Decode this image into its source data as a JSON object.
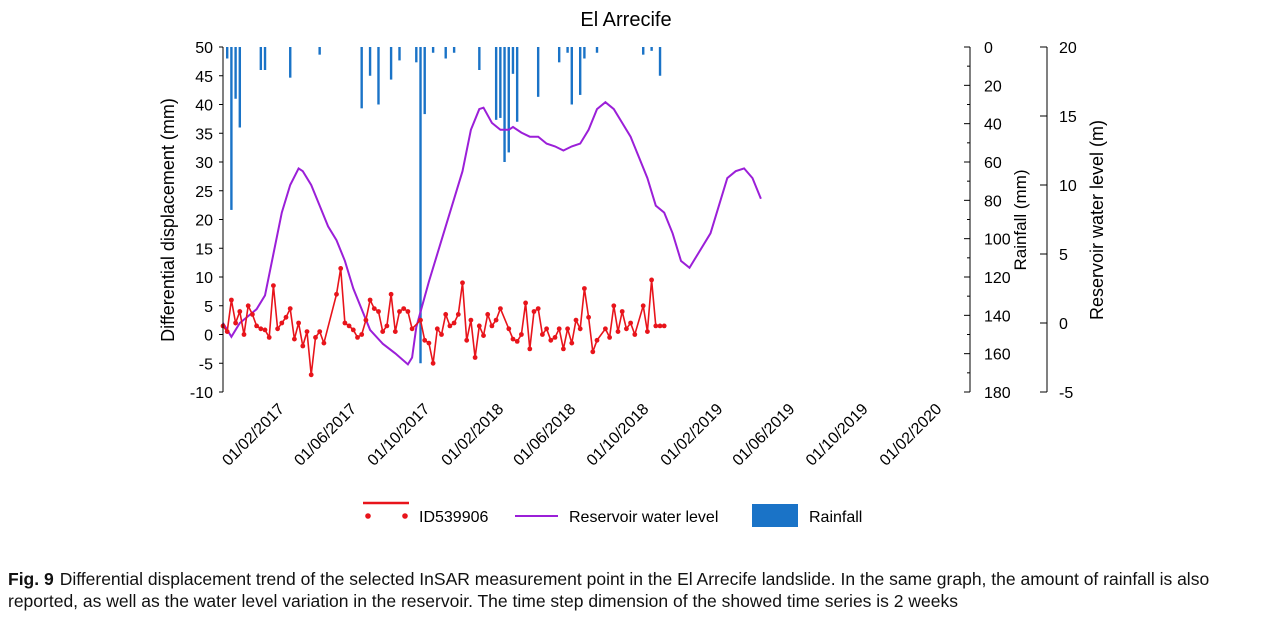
{
  "chart_data": {
    "type": "line",
    "title": "El Arrecife",
    "y_left": {
      "label": "Differential displacement (mm)",
      "range": [
        -10,
        50
      ],
      "ticks": [
        "50",
        "45",
        "40",
        "35",
        "30",
        "25",
        "20",
        "15",
        "10",
        "5",
        "0",
        "-5",
        "-10"
      ]
    },
    "y_rain": {
      "label": "Rainfall (mm)",
      "range": [
        0,
        180
      ],
      "inverted": true,
      "ticks": [
        "0",
        "20",
        "40",
        "60",
        "80",
        "100",
        "120",
        "140",
        "160",
        "180"
      ]
    },
    "y_level": {
      "label": "Reservoir water level (m)",
      "range": [
        -5,
        20
      ],
      "ticks": [
        "20",
        "15",
        "10",
        "5",
        "0",
        "-5"
      ]
    },
    "x_range": [
      "2016-10-27",
      "2020-03-01"
    ],
    "x_ticks": [
      "01/02/2017",
      "01/06/2017",
      "01/10/2017",
      "01/02/2018",
      "01/06/2018",
      "01/10/2018",
      "01/02/2019",
      "01/06/2019",
      "01/10/2019",
      "01/02/2020"
    ],
    "legend": [
      "ID539906",
      "Reservoir water level",
      "Rainfall"
    ],
    "legend_position": "bottom",
    "colors": {
      "displacement": "#e8141b",
      "water_level": "#9b1fd8",
      "rainfall": "#1a73c7"
    },
    "series": [
      {
        "name": "ID539906",
        "axis": "displacement",
        "style": "line-markers",
        "points": [
          [
            "2016-10-27",
            1.5
          ],
          [
            "2016-11-03",
            0.5
          ],
          [
            "2016-11-10",
            6
          ],
          [
            "2016-11-17",
            2
          ],
          [
            "2016-11-24",
            4
          ],
          [
            "2016-12-01",
            0
          ],
          [
            "2016-12-08",
            5
          ],
          [
            "2016-12-15",
            3.5
          ],
          [
            "2016-12-22",
            1.5
          ],
          [
            "2016-12-29",
            1
          ],
          [
            "2017-01-05",
            0.8
          ],
          [
            "2017-01-12",
            -0.5
          ],
          [
            "2017-01-19",
            8.5
          ],
          [
            "2017-01-26",
            1
          ],
          [
            "2017-02-02",
            2
          ],
          [
            "2017-02-09",
            3
          ],
          [
            "2017-02-16",
            4.5
          ],
          [
            "2017-02-23",
            -0.8
          ],
          [
            "2017-03-02",
            2
          ],
          [
            "2017-03-09",
            -2
          ],
          [
            "2017-03-16",
            0.5
          ],
          [
            "2017-03-23",
            -7
          ],
          [
            "2017-03-30",
            -0.5
          ],
          [
            "2017-04-06",
            0.5
          ],
          [
            "2017-04-13",
            -1.5
          ],
          [
            "2017-05-04",
            7
          ],
          [
            "2017-05-11",
            11.5
          ],
          [
            "2017-05-18",
            2
          ],
          [
            "2017-05-25",
            1.5
          ],
          [
            "2017-06-01",
            0.8
          ],
          [
            "2017-06-08",
            -0.5
          ],
          [
            "2017-06-15",
            0
          ],
          [
            "2017-06-22",
            2.5
          ],
          [
            "2017-06-29",
            6
          ],
          [
            "2017-07-06",
            4.5
          ],
          [
            "2017-07-13",
            4
          ],
          [
            "2017-07-20",
            0.5
          ],
          [
            "2017-07-27",
            1.5
          ],
          [
            "2017-08-03",
            7
          ],
          [
            "2017-08-10",
            0.5
          ],
          [
            "2017-08-17",
            4
          ],
          [
            "2017-08-24",
            4.5
          ],
          [
            "2017-08-31",
            4
          ],
          [
            "2017-09-07",
            1
          ],
          [
            "2017-09-21",
            2.5
          ],
          [
            "2017-09-28",
            -1
          ],
          [
            "2017-10-05",
            -1.5
          ],
          [
            "2017-10-12",
            -5
          ],
          [
            "2017-10-19",
            1
          ],
          [
            "2017-10-26",
            0
          ],
          [
            "2017-11-02",
            3.5
          ],
          [
            "2017-11-09",
            1.5
          ],
          [
            "2017-11-16",
            2
          ],
          [
            "2017-11-23",
            3.5
          ],
          [
            "2017-11-30",
            9
          ],
          [
            "2017-12-07",
            -1
          ],
          [
            "2017-12-14",
            2.5
          ],
          [
            "2017-12-21",
            -4
          ],
          [
            "2017-12-28",
            1.5
          ],
          [
            "2018-01-04",
            -0.2
          ],
          [
            "2018-01-11",
            3.5
          ],
          [
            "2018-01-18",
            1.5
          ],
          [
            "2018-01-25",
            2.5
          ],
          [
            "2018-02-01",
            4.5
          ],
          [
            "2018-02-15",
            1
          ],
          [
            "2018-02-22",
            -0.8
          ],
          [
            "2018-03-01",
            -1.2
          ],
          [
            "2018-03-08",
            0
          ],
          [
            "2018-03-15",
            5.5
          ],
          [
            "2018-03-22",
            -2.5
          ],
          [
            "2018-03-29",
            4
          ],
          [
            "2018-04-05",
            4.5
          ],
          [
            "2018-04-12",
            0
          ],
          [
            "2018-04-19",
            1
          ],
          [
            "2018-04-26",
            -1
          ],
          [
            "2018-05-03",
            -0.5
          ],
          [
            "2018-05-10",
            1
          ],
          [
            "2018-05-17",
            -2.5
          ],
          [
            "2018-05-24",
            1
          ],
          [
            "2018-05-31",
            -1.5
          ],
          [
            "2018-06-07",
            2.5
          ],
          [
            "2018-06-14",
            1
          ],
          [
            "2018-06-21",
            8
          ],
          [
            "2018-06-28",
            3
          ],
          [
            "2018-07-05",
            -3
          ],
          [
            "2018-07-12",
            -1
          ],
          [
            "2018-07-26",
            1
          ],
          [
            "2018-08-02",
            -0.5
          ],
          [
            "2018-08-09",
            5
          ],
          [
            "2018-08-16",
            0.5
          ],
          [
            "2018-08-23",
            4
          ],
          [
            "2018-08-30",
            1
          ],
          [
            "2018-09-06",
            2
          ],
          [
            "2018-09-13",
            0
          ],
          [
            "2018-09-27",
            5
          ],
          [
            "2018-10-04",
            0.5
          ],
          [
            "2018-10-11",
            9.5
          ],
          [
            "2018-10-18",
            1.5
          ],
          [
            "2018-10-25",
            1.5
          ],
          [
            "2018-11-01",
            1.5
          ]
        ]
      },
      {
        "name": "Reservoir water level",
        "axis": "level",
        "style": "line",
        "points": [
          [
            "2016-10-27",
            0
          ],
          [
            "2016-11-10",
            -1
          ],
          [
            "2016-11-24",
            0
          ],
          [
            "2016-12-08",
            0.5
          ],
          [
            "2016-12-22",
            1
          ],
          [
            "2017-01-05",
            2
          ],
          [
            "2017-01-19",
            5
          ],
          [
            "2017-02-02",
            8
          ],
          [
            "2017-02-16",
            10
          ],
          [
            "2017-03-02",
            11.2
          ],
          [
            "2017-03-09",
            11
          ],
          [
            "2017-03-23",
            10
          ],
          [
            "2017-04-06",
            8.5
          ],
          [
            "2017-04-20",
            7
          ],
          [
            "2017-05-04",
            6
          ],
          [
            "2017-05-18",
            4.5
          ],
          [
            "2017-06-01",
            2.5
          ],
          [
            "2017-06-15",
            1
          ],
          [
            "2017-06-29",
            -0.5
          ],
          [
            "2017-07-20",
            -1.5
          ],
          [
            "2017-08-10",
            -2.2
          ],
          [
            "2017-08-31",
            -3
          ],
          [
            "2017-09-07",
            -2.5
          ],
          [
            "2017-09-14",
            -0.3
          ],
          [
            "2017-10-05",
            3
          ],
          [
            "2017-10-26",
            6
          ],
          [
            "2017-11-16",
            9
          ],
          [
            "2017-11-30",
            11
          ],
          [
            "2017-12-14",
            14
          ],
          [
            "2017-12-28",
            15.5
          ],
          [
            "2018-01-04",
            15.6
          ],
          [
            "2018-01-18",
            14.5
          ],
          [
            "2018-02-01",
            14
          ],
          [
            "2018-02-15",
            14
          ],
          [
            "2018-02-22",
            14.2
          ],
          [
            "2018-03-08",
            13.8
          ],
          [
            "2018-03-22",
            13.5
          ],
          [
            "2018-04-05",
            13.5
          ],
          [
            "2018-04-19",
            13
          ],
          [
            "2018-05-03",
            12.8
          ],
          [
            "2018-05-17",
            12.5
          ],
          [
            "2018-05-31",
            12.8
          ],
          [
            "2018-06-14",
            13
          ],
          [
            "2018-06-28",
            14
          ],
          [
            "2018-07-12",
            15.5
          ],
          [
            "2018-07-26",
            16
          ],
          [
            "2018-08-09",
            15.5
          ],
          [
            "2018-08-23",
            14.5
          ],
          [
            "2018-09-06",
            13.5
          ],
          [
            "2018-09-20",
            12
          ],
          [
            "2018-10-04",
            10.5
          ],
          [
            "2018-10-18",
            8.5
          ],
          [
            "2018-11-01",
            8
          ],
          [
            "2018-11-15",
            6.5
          ],
          [
            "2018-11-29",
            4.5
          ],
          [
            "2018-12-13",
            4
          ],
          [
            "2018-12-20",
            4.5
          ],
          [
            "2018-12-27",
            5
          ],
          [
            "2019-01-17",
            6.5
          ],
          [
            "2019-01-31",
            8.5
          ],
          [
            "2019-02-14",
            10.5
          ],
          [
            "2019-02-28",
            11
          ],
          [
            "2019-03-14",
            11.2
          ],
          [
            "2019-03-28",
            10.5
          ],
          [
            "2019-04-11",
            9
          ]
        ]
      },
      {
        "name": "Rainfall",
        "axis": "rain",
        "style": "bar",
        "points": [
          [
            "2016-11-03",
            6
          ],
          [
            "2016-11-10",
            85
          ],
          [
            "2016-11-17",
            27
          ],
          [
            "2016-11-24",
            42
          ],
          [
            "2016-12-29",
            12
          ],
          [
            "2017-01-05",
            12
          ],
          [
            "2017-02-16",
            16
          ],
          [
            "2017-04-06",
            4
          ],
          [
            "2017-06-15",
            32
          ],
          [
            "2017-06-29",
            15
          ],
          [
            "2017-07-13",
            30
          ],
          [
            "2017-08-03",
            17
          ],
          [
            "2017-08-17",
            7
          ],
          [
            "2017-09-14",
            8
          ],
          [
            "2017-09-21",
            165
          ],
          [
            "2017-09-28",
            35
          ],
          [
            "2017-10-12",
            3
          ],
          [
            "2017-11-02",
            6
          ],
          [
            "2017-11-16",
            3
          ],
          [
            "2017-12-28",
            12
          ],
          [
            "2018-01-25",
            38
          ],
          [
            "2018-02-01",
            37
          ],
          [
            "2018-02-08",
            60
          ],
          [
            "2018-02-15",
            55
          ],
          [
            "2018-02-22",
            14
          ],
          [
            "2018-03-01",
            39
          ],
          [
            "2018-04-05",
            26
          ],
          [
            "2018-05-10",
            8
          ],
          [
            "2018-05-24",
            3
          ],
          [
            "2018-05-31",
            30
          ],
          [
            "2018-06-14",
            25
          ],
          [
            "2018-06-21",
            6
          ],
          [
            "2018-07-12",
            3
          ],
          [
            "2018-09-27",
            4
          ],
          [
            "2018-10-11",
            2
          ],
          [
            "2018-10-25",
            15
          ]
        ]
      }
    ]
  },
  "caption": {
    "label": "Fig. 9",
    "text": "Differential displacement trend of the selected InSAR measurement point in the El Arrecife landslide. In the same graph, the amount of rainfall is also reported, as well as the water level variation in the reservoir. The time step dimension of the showed time series is 2 weeks"
  }
}
